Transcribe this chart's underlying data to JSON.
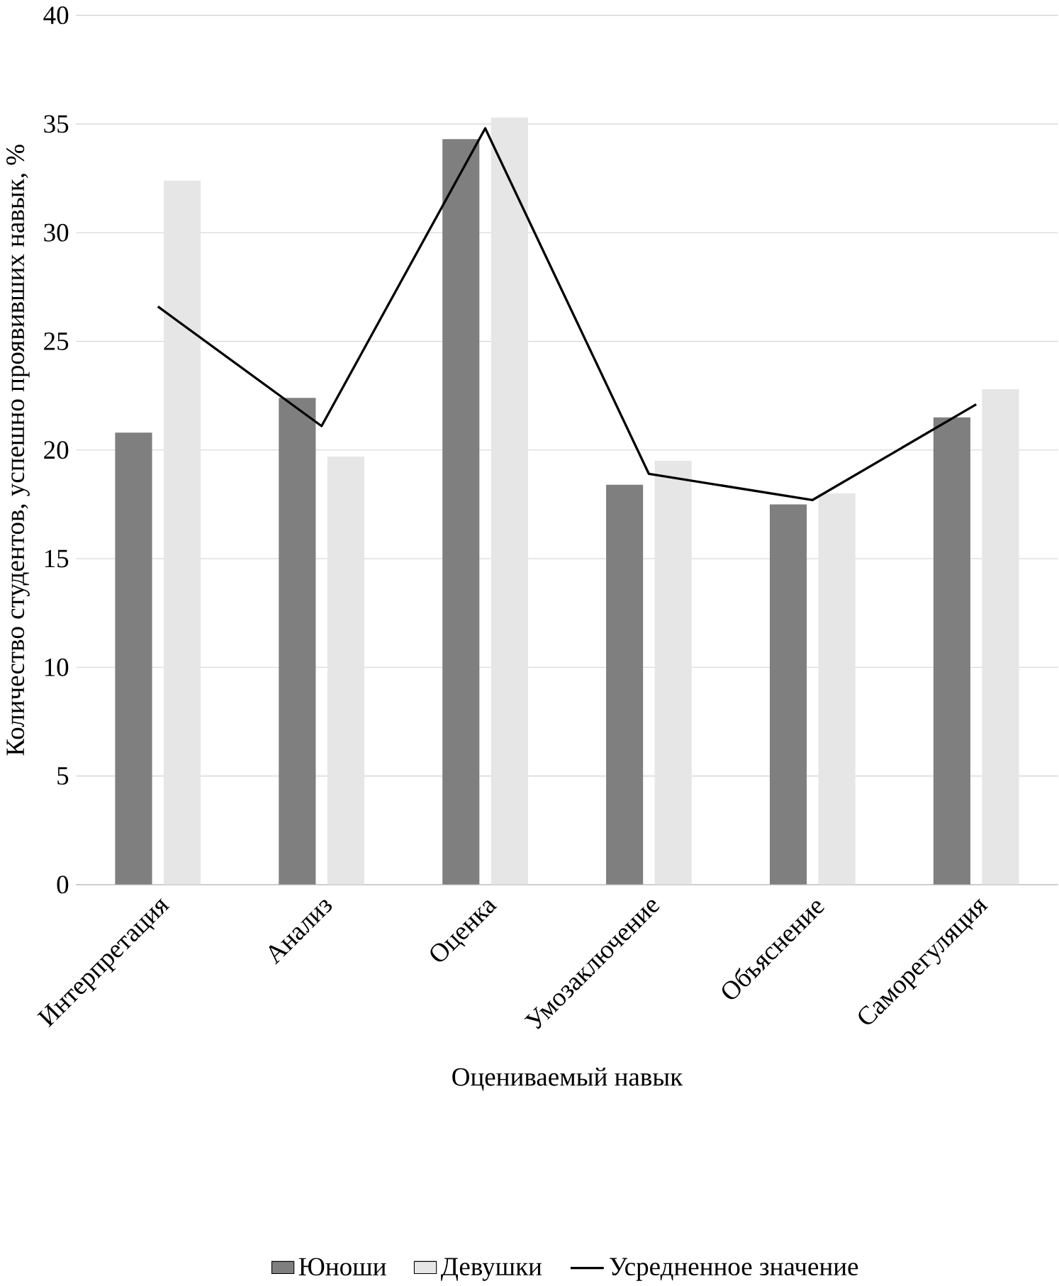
{
  "chart_data": {
    "type": "bar",
    "xlabel": "Оцениваемый навык",
    "ylabel": "Количество студентов, успешно проявивших навык, %",
    "categories": [
      "Интерпретация",
      "Анализ",
      "Оценка",
      "Умозаключение",
      "Объяснение",
      "Саморегуляция"
    ],
    "series": [
      {
        "name": "Юноши",
        "color": "#7f7f7f",
        "values": [
          20.8,
          22.4,
          34.3,
          18.4,
          17.5,
          21.5
        ]
      },
      {
        "name": "Девушки",
        "color": "#e6e6e6",
        "values": [
          32.4,
          19.7,
          35.3,
          19.5,
          18.0,
          22.8
        ]
      },
      {
        "name": "Усредненное значение",
        "type": "line",
        "color": "#000000",
        "values": [
          26.6,
          21.1,
          34.8,
          18.9,
          17.7,
          22.1
        ]
      }
    ],
    "ylim": [
      0,
      40
    ],
    "yticks": [
      0,
      5,
      10,
      15,
      20,
      25,
      30,
      35,
      40
    ],
    "grid": "y",
    "legend": "bottom",
    "marker": "none",
    "line_style": "solid"
  }
}
